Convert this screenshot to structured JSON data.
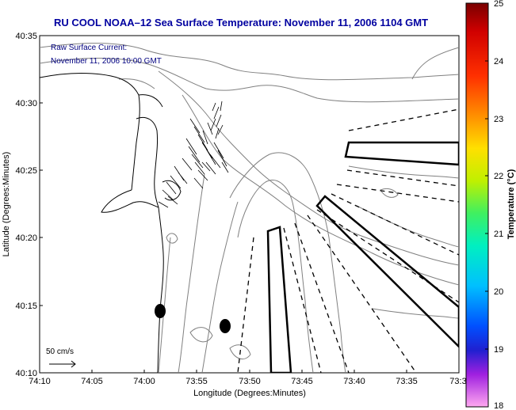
{
  "title": "RU COOL  NOAA–12  Sea Surface Temperature:  November 11, 2006 1104 GMT",
  "inset": {
    "line1": "Raw Surface Current:",
    "line2": "November 11, 2006 10:00 GMT"
  },
  "x_axis": {
    "label": "Longitude (Degrees:Minutes)",
    "ticks": [
      "74:10",
      "74:05",
      "74:00",
      "73:55",
      "73:50",
      "73:45",
      "73:40",
      "73:35",
      "73:3"
    ]
  },
  "y_axis": {
    "label": "Latitude (Degrees:Minutes)",
    "ticks": [
      "40:35",
      "40:30",
      "40:25",
      "40:20",
      "40:15",
      "40:10"
    ]
  },
  "colorbar": {
    "label": "Temperature (°C)",
    "ticks": [
      "25",
      "24",
      "23",
      "22",
      "21",
      "20",
      "19",
      "18"
    ],
    "range": [
      18,
      25
    ]
  },
  "scale_arrow": {
    "label": "50 cm/s"
  },
  "colors": {
    "title": "#0000a0",
    "inset_text": "#000080",
    "bathymetry": "#808080",
    "coast": "#000000"
  }
}
